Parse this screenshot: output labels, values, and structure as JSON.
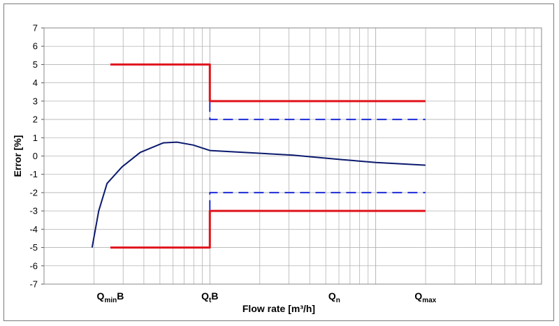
{
  "chart_data": {
    "type": "line",
    "title": "",
    "xlabel": "Flow rate [m³/h]",
    "ylabel": "Error [%]",
    "x_scale": "log",
    "ylim": [
      -7,
      7
    ],
    "y_ticks": [
      "7",
      "6",
      "5",
      "4",
      "3",
      "2",
      "1",
      "0",
      "-1",
      "-2",
      "-3",
      "-4",
      "-5",
      "-6",
      "-7"
    ],
    "grid": true,
    "legend": "none",
    "categories": [
      {
        "main": "Q",
        "sub": "min",
        "suffix": "B"
      },
      {
        "main": "Q",
        "sub": "t",
        "suffix": "B"
      },
      {
        "main": "Q",
        "sub": "n",
        "suffix": ""
      },
      {
        "main": "Q",
        "sub": "max",
        "suffix": ""
      }
    ],
    "series": [
      {
        "color": "#e0141b",
        "style": "solid",
        "points": [
          [
            0.4,
            5
          ],
          [
            1.0,
            5
          ],
          [
            1.0,
            3
          ],
          [
            2.3,
            3
          ]
        ]
      },
      {
        "color": "#e0141b",
        "style": "solid",
        "points": [
          [
            0.4,
            -5
          ],
          [
            1.0,
            -5
          ],
          [
            1.0,
            -3
          ],
          [
            2.3,
            -3
          ]
        ]
      },
      {
        "color": "#1c2bd6",
        "style": "dashed",
        "points": [
          [
            1.0,
            2.95
          ],
          [
            1.0,
            2
          ],
          [
            2.3,
            2
          ]
        ]
      },
      {
        "color": "#1c2bd6",
        "style": "dashed",
        "points": [
          [
            1.0,
            -2.95
          ],
          [
            1.0,
            -2
          ],
          [
            2.3,
            -2
          ]
        ]
      },
      {
        "color": "#0c1a6e",
        "style": "solid",
        "points": [
          [
            0.29,
            -5
          ],
          [
            0.33,
            -3
          ],
          [
            0.38,
            -1.5
          ],
          [
            0.47,
            -0.6
          ],
          [
            0.58,
            0.2
          ],
          [
            0.72,
            0.72
          ],
          [
            0.8,
            0.76
          ],
          [
            0.9,
            0.6
          ],
          [
            1.0,
            0.3
          ],
          [
            1.2,
            0.2
          ],
          [
            1.5,
            0.05
          ],
          [
            1.8,
            -0.2
          ],
          [
            2.0,
            -0.35
          ],
          [
            2.3,
            -0.5
          ]
        ]
      }
    ]
  }
}
